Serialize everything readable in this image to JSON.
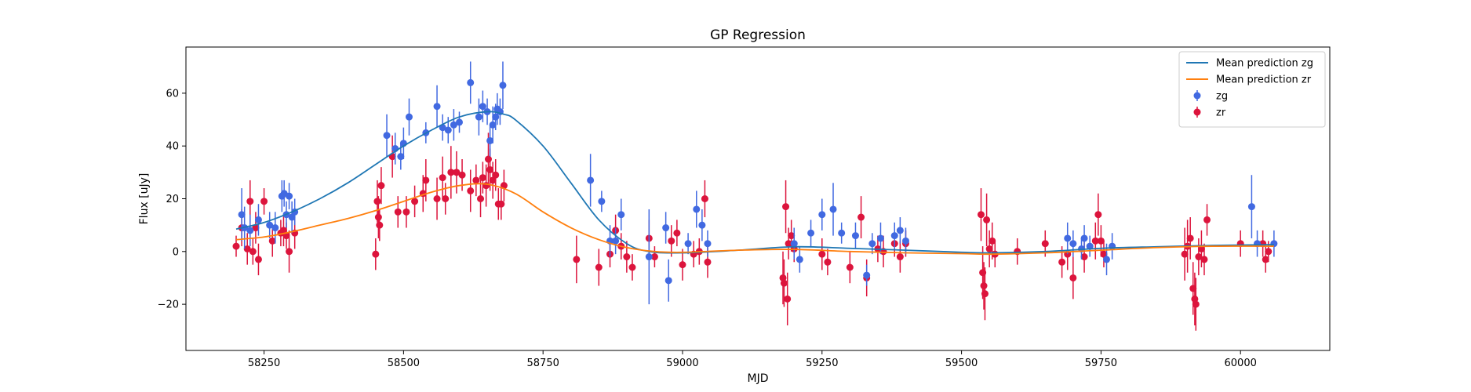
{
  "chart_data": {
    "type": "scatter",
    "title": "GP Regression",
    "xlabel": "MJD",
    "ylabel": "Flux [uJy]",
    "xlim": [
      58110,
      60160
    ],
    "ylim": [
      -37.5,
      77.5
    ],
    "xticks": [
      58250,
      58500,
      58750,
      59000,
      59250,
      59500,
      59750,
      60000
    ],
    "xtick_labels": [
      "58250",
      "58500",
      "58750",
      "59000",
      "59250",
      "59500",
      "59750",
      "60000"
    ],
    "yticks": [
      -20,
      0,
      20,
      40,
      60
    ],
    "ytick_labels": [
      "−20",
      "0",
      "20",
      "40",
      "60"
    ],
    "grid": false,
    "legend_position": "upper right",
    "legend": [
      {
        "label": "Mean prediction zg",
        "kind": "line",
        "color": "#1f77b4"
      },
      {
        "label": "Mean prediction zr",
        "kind": "line",
        "color": "#ff7f0e"
      },
      {
        "label": "zg",
        "kind": "errorbar",
        "color": "#4169e1"
      },
      {
        "label": "zr",
        "kind": "errorbar",
        "color": "#dc143c"
      }
    ],
    "lines": [
      {
        "name": "Mean prediction zg",
        "color": "#1f77b4",
        "x": [
          58200,
          58250,
          58300,
          58350,
          58400,
          58450,
          58500,
          58550,
          58600,
          58650,
          58680,
          58700,
          58750,
          58800,
          58850,
          58900,
          58940,
          59000,
          59100,
          59200,
          59300,
          59400,
          59500,
          59550,
          59650,
          59750,
          59850,
          59950,
          60060
        ],
        "y": [
          8.5,
          11,
          15,
          20,
          26,
          33,
          40,
          46,
          51,
          53,
          52,
          50,
          40,
          26,
          12,
          3,
          0,
          -0.5,
          0.5,
          1.8,
          1.2,
          0.5,
          -0.3,
          -0.5,
          0,
          1.2,
          1.8,
          2.3,
          2.6
        ]
      },
      {
        "name": "Mean prediction zr",
        "color": "#ff7f0e",
        "x": [
          58200,
          58250,
          58300,
          58350,
          58400,
          58450,
          58500,
          58550,
          58600,
          58650,
          58700,
          58750,
          58800,
          58850,
          58900,
          58950,
          59000,
          59100,
          59200,
          59300,
          59400,
          59500,
          59550,
          59650,
          59750,
          59850,
          59950,
          60060
        ],
        "y": [
          4.5,
          5.5,
          7.5,
          10,
          12.5,
          15.5,
          19,
          22.5,
          25,
          25.5,
          22,
          15,
          9,
          4.5,
          1.5,
          0,
          -0.3,
          0.5,
          0.8,
          0,
          -0.5,
          -0.8,
          -1,
          -0.5,
          0.5,
          1.5,
          2,
          2
        ]
      }
    ],
    "series": [
      {
        "name": "zg",
        "color": "#4169e1",
        "points": [
          [
            58210,
            14,
            10
          ],
          [
            58215,
            9,
            8
          ],
          [
            58225,
            8,
            6
          ],
          [
            58240,
            12,
            6
          ],
          [
            58260,
            10,
            5
          ],
          [
            58270,
            9,
            6
          ],
          [
            58282,
            21,
            6
          ],
          [
            58286,
            22,
            5
          ],
          [
            58290,
            14,
            5
          ],
          [
            58295,
            21,
            5
          ],
          [
            58300,
            13,
            6
          ],
          [
            58305,
            15,
            5
          ],
          [
            58470,
            44,
            8
          ],
          [
            58485,
            39,
            6
          ],
          [
            58495,
            36,
            5
          ],
          [
            58500,
            41,
            6
          ],
          [
            58510,
            51,
            7
          ],
          [
            58540,
            45,
            4
          ],
          [
            58560,
            55,
            8
          ],
          [
            58570,
            47,
            5
          ],
          [
            58580,
            46,
            5
          ],
          [
            58590,
            48,
            6
          ],
          [
            58600,
            49,
            4
          ],
          [
            58620,
            64,
            8
          ],
          [
            58635,
            51,
            7
          ],
          [
            58642,
            55,
            6
          ],
          [
            58650,
            53,
            5
          ],
          [
            58655,
            42,
            6
          ],
          [
            58660,
            48,
            7
          ],
          [
            58665,
            51,
            5
          ],
          [
            58668,
            54,
            6
          ],
          [
            58673,
            53,
            5
          ],
          [
            58678,
            63,
            9
          ],
          [
            58835,
            27,
            10
          ],
          [
            58855,
            19,
            4
          ],
          [
            58870,
            4,
            6
          ],
          [
            58880,
            4,
            5
          ],
          [
            58890,
            14,
            6
          ],
          [
            58940,
            -2,
            18
          ],
          [
            58970,
            9,
            6
          ],
          [
            58975,
            -11,
            8
          ],
          [
            59010,
            3,
            4
          ],
          [
            59025,
            16,
            7
          ],
          [
            59035,
            10,
            6
          ],
          [
            59045,
            3,
            5
          ],
          [
            59200,
            3,
            6
          ],
          [
            59210,
            -3,
            5
          ],
          [
            59230,
            7,
            5
          ],
          [
            59250,
            14,
            6
          ],
          [
            59270,
            16,
            10
          ],
          [
            59285,
            7,
            4
          ],
          [
            59310,
            6,
            5
          ],
          [
            59330,
            -9,
            4
          ],
          [
            59340,
            3,
            4
          ],
          [
            59355,
            5,
            6
          ],
          [
            59380,
            6,
            5
          ],
          [
            59390,
            8,
            5
          ],
          [
            59400,
            4,
            5
          ],
          [
            59690,
            5,
            6
          ],
          [
            59700,
            3,
            5
          ],
          [
            59715,
            1,
            4
          ],
          [
            59720,
            5,
            5
          ],
          [
            59730,
            2,
            4
          ],
          [
            59760,
            -3,
            6
          ],
          [
            59770,
            2,
            5
          ],
          [
            60020,
            17,
            12
          ],
          [
            60030,
            3,
            5
          ],
          [
            60060,
            3,
            5
          ]
        ]
      },
      {
        "name": "zr",
        "color": "#dc143c",
        "points": [
          [
            58200,
            2,
            4
          ],
          [
            58210,
            9,
            7
          ],
          [
            58220,
            1,
            6
          ],
          [
            58225,
            19,
            8
          ],
          [
            58230,
            0,
            5
          ],
          [
            58235,
            9,
            6
          ],
          [
            58240,
            -3,
            6
          ],
          [
            58250,
            19,
            5
          ],
          [
            58265,
            4,
            6
          ],
          [
            58280,
            7,
            5
          ],
          [
            58285,
            8,
            6
          ],
          [
            58290,
            6,
            5
          ],
          [
            58295,
            0,
            8
          ],
          [
            58305,
            7,
            6
          ],
          [
            58450,
            -1,
            6
          ],
          [
            58453,
            19,
            8
          ],
          [
            58455,
            13,
            8
          ],
          [
            58457,
            10,
            6
          ],
          [
            58460,
            25,
            7
          ],
          [
            58480,
            36,
            8
          ],
          [
            58490,
            15,
            6
          ],
          [
            58505,
            15,
            6
          ],
          [
            58520,
            19,
            6
          ],
          [
            58535,
            22,
            7
          ],
          [
            58540,
            27,
            8
          ],
          [
            58560,
            20,
            8
          ],
          [
            58570,
            28,
            8
          ],
          [
            58575,
            20,
            6
          ],
          [
            58585,
            30,
            10
          ],
          [
            58595,
            30,
            8
          ],
          [
            58605,
            29,
            6
          ],
          [
            58620,
            23,
            8
          ],
          [
            58630,
            27,
            6
          ],
          [
            58638,
            20,
            7
          ],
          [
            58642,
            28,
            6
          ],
          [
            58648,
            25,
            8
          ],
          [
            58652,
            35,
            10
          ],
          [
            58655,
            31,
            8
          ],
          [
            58660,
            27,
            7
          ],
          [
            58665,
            29,
            6
          ],
          [
            58670,
            18,
            6
          ],
          [
            58675,
            18,
            6
          ],
          [
            58680,
            25,
            6
          ],
          [
            58810,
            -3,
            9
          ],
          [
            58850,
            -6,
            7
          ],
          [
            58870,
            -1,
            5
          ],
          [
            58880,
            8,
            6
          ],
          [
            58890,
            2,
            5
          ],
          [
            58900,
            -2,
            6
          ],
          [
            58910,
            -6,
            5
          ],
          [
            58940,
            5,
            7
          ],
          [
            58950,
            -2,
            4
          ],
          [
            58980,
            4,
            6
          ],
          [
            58990,
            7,
            5
          ],
          [
            59000,
            -5,
            6
          ],
          [
            59020,
            -1,
            5
          ],
          [
            59030,
            0,
            5
          ],
          [
            59040,
            20,
            7
          ],
          [
            59045,
            -4,
            6
          ],
          [
            59180,
            -10,
            10
          ],
          [
            59182,
            -12,
            9
          ],
          [
            59185,
            17,
            10
          ],
          [
            59188,
            -18,
            10
          ],
          [
            59190,
            3,
            6
          ],
          [
            59195,
            6,
            6
          ],
          [
            59200,
            1,
            5
          ],
          [
            59250,
            -1,
            6
          ],
          [
            59260,
            -4,
            5
          ],
          [
            59300,
            -6,
            6
          ],
          [
            59320,
            13,
            8
          ],
          [
            59330,
            -10,
            7
          ],
          [
            59350,
            1,
            5
          ],
          [
            59360,
            0,
            6
          ],
          [
            59380,
            3,
            5
          ],
          [
            59390,
            -2,
            6
          ],
          [
            59400,
            3,
            5
          ],
          [
            59535,
            14,
            10
          ],
          [
            59538,
            -8,
            10
          ],
          [
            59540,
            -13,
            9
          ],
          [
            59542,
            -16,
            10
          ],
          [
            59545,
            12,
            10
          ],
          [
            59550,
            1,
            7
          ],
          [
            59555,
            4,
            7
          ],
          [
            59560,
            -1,
            5
          ],
          [
            59600,
            0,
            5
          ],
          [
            59650,
            3,
            5
          ],
          [
            59680,
            -4,
            6
          ],
          [
            59690,
            -1,
            6
          ],
          [
            59700,
            -10,
            8
          ],
          [
            59720,
            -2,
            6
          ],
          [
            59740,
            4,
            7
          ],
          [
            59745,
            14,
            8
          ],
          [
            59750,
            4,
            6
          ],
          [
            59755,
            -1,
            5
          ],
          [
            59900,
            -1,
            10
          ],
          [
            59905,
            2,
            10
          ],
          [
            59910,
            5,
            8
          ],
          [
            59915,
            -14,
            10
          ],
          [
            59918,
            -18,
            10
          ],
          [
            59920,
            -20,
            10
          ],
          [
            59925,
            -2,
            7
          ],
          [
            59930,
            1,
            7
          ],
          [
            59935,
            -3,
            6
          ],
          [
            59940,
            12,
            6
          ],
          [
            60000,
            3,
            5
          ],
          [
            60040,
            3,
            5
          ],
          [
            60045,
            -3,
            5
          ],
          [
            60050,
            0,
            4
          ]
        ]
      }
    ]
  }
}
